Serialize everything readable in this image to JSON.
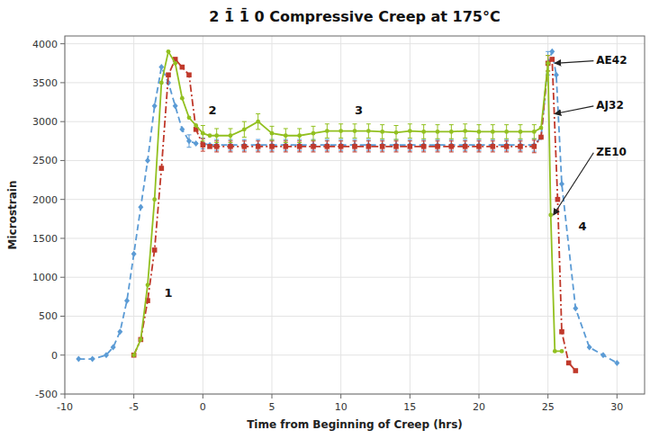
{
  "chart_data": {
    "type": "line",
    "title": "2 1̄ 1̄ 0 Compressive Creep at 175°C",
    "x_label": "Time from Beginning of Creep (hrs)",
    "y_label": "Microstrain",
    "xlim": [
      -10,
      32
    ],
    "ylim": [
      -500,
      4100
    ],
    "xticks": [
      -10,
      -5,
      0,
      5,
      10,
      15,
      20,
      25,
      30
    ],
    "yticks": [
      -500,
      0,
      500,
      1000,
      1500,
      2000,
      2500,
      3000,
      3500,
      4000
    ],
    "grid": true,
    "series": [
      {
        "name": "AE42",
        "color": "#5b9bd5",
        "line_style": "dashed",
        "marker": "diamond",
        "x": [
          -9,
          -8,
          -7,
          -6.5,
          -6,
          -5.5,
          -5,
          -4.5,
          -4,
          -3.5,
          -3,
          -2.5,
          -2,
          -1.5,
          -1,
          -0.5,
          0,
          0.5,
          1,
          2,
          3,
          4,
          5,
          6,
          7,
          8,
          9,
          10,
          11,
          12,
          13,
          14,
          15,
          16,
          17,
          18,
          19,
          20,
          21,
          22,
          23,
          24,
          24.5,
          25,
          25.3,
          25.6,
          26,
          27,
          28,
          29,
          30
        ],
        "values": [
          -50,
          -50,
          0,
          100,
          300,
          700,
          1300,
          1900,
          2500,
          3200,
          3700,
          3500,
          3200,
          2900,
          2750,
          2720,
          2720,
          2700,
          2700,
          2700,
          2700,
          2700,
          2700,
          2700,
          2700,
          2700,
          2700,
          2700,
          2700,
          2700,
          2700,
          2700,
          2700,
          2700,
          2700,
          2700,
          2700,
          2700,
          2700,
          2700,
          2700,
          2700,
          2800,
          3750,
          3900,
          3600,
          2200,
          600,
          100,
          0,
          -100
        ],
        "error_x": [
          -1,
          0,
          1,
          2,
          3,
          4,
          5,
          6,
          7,
          8,
          9,
          10,
          11,
          12,
          13,
          14,
          15,
          16,
          17,
          18,
          19,
          20,
          21,
          22,
          23,
          24,
          25
        ],
        "error_y": [
          2750,
          2720,
          2700,
          2700,
          2700,
          2700,
          2700,
          2700,
          2700,
          2700,
          2700,
          2700,
          2700,
          2700,
          2700,
          2700,
          2700,
          2700,
          2700,
          2700,
          2700,
          2700,
          2700,
          2700,
          2700,
          2700,
          3750
        ],
        "error": [
          80,
          70,
          70,
          70,
          70,
          70,
          70,
          70,
          70,
          70,
          70,
          70,
          70,
          70,
          70,
          70,
          70,
          70,
          70,
          70,
          70,
          70,
          70,
          70,
          70,
          80,
          150
        ]
      },
      {
        "name": "AJ32",
        "color": "#c0392b",
        "line_style": "dashdot",
        "marker": "square",
        "x": [
          -5,
          -4.5,
          -4,
          -3.5,
          -3,
          -2.5,
          -2,
          -1.5,
          -1,
          -0.5,
          0,
          0.5,
          1,
          2,
          3,
          4,
          5,
          6,
          7,
          8,
          9,
          10,
          11,
          12,
          13,
          14,
          15,
          16,
          17,
          18,
          19,
          20,
          21,
          22,
          23,
          24,
          24.5,
          25,
          25.3,
          25.7,
          26,
          26.5,
          27
        ],
        "values": [
          0,
          200,
          700,
          1350,
          2400,
          3600,
          3800,
          3700,
          3600,
          2900,
          2700,
          2680,
          2680,
          2680,
          2680,
          2680,
          2680,
          2680,
          2680,
          2680,
          2680,
          2680,
          2680,
          2680,
          2680,
          2680,
          2680,
          2680,
          2680,
          2680,
          2680,
          2680,
          2680,
          2680,
          2680,
          2680,
          2800,
          3750,
          3800,
          2000,
          300,
          -100,
          -200
        ],
        "error_x": [
          0,
          1,
          2,
          3,
          4,
          5,
          6,
          7,
          8,
          9,
          10,
          11,
          12,
          13,
          14,
          15,
          16,
          17,
          18,
          19,
          20,
          21,
          22,
          23,
          24,
          25
        ],
        "error_y": [
          2700,
          2680,
          2680,
          2680,
          2680,
          2680,
          2680,
          2680,
          2680,
          2680,
          2680,
          2680,
          2680,
          2680,
          2680,
          2680,
          2680,
          2680,
          2680,
          2680,
          2680,
          2680,
          2680,
          2680,
          2680,
          3750
        ],
        "error": [
          80,
          70,
          70,
          70,
          70,
          70,
          70,
          70,
          70,
          70,
          70,
          70,
          70,
          70,
          70,
          70,
          70,
          70,
          70,
          70,
          70,
          70,
          70,
          70,
          80,
          100
        ]
      },
      {
        "name": "ZE10",
        "color": "#92c020",
        "line_style": "solid",
        "marker": "circle",
        "x": [
          -5,
          -4.5,
          -4,
          -3.5,
          -3,
          -2.5,
          -2,
          -1.5,
          -1,
          -0.5,
          0,
          0.5,
          1,
          2,
          3,
          4,
          5,
          6,
          7,
          8,
          9,
          10,
          11,
          12,
          13,
          14,
          15,
          16,
          17,
          18,
          19,
          20,
          21,
          22,
          23,
          24,
          24.5,
          25,
          25.2,
          25.5,
          26
        ],
        "values": [
          0,
          200,
          900,
          2000,
          3500,
          3900,
          3750,
          3300,
          3050,
          2950,
          2850,
          2820,
          2820,
          2820,
          2900,
          3000,
          2850,
          2820,
          2820,
          2850,
          2880,
          2880,
          2880,
          2880,
          2870,
          2860,
          2880,
          2870,
          2870,
          2870,
          2880,
          2870,
          2870,
          2870,
          2870,
          2870,
          2920,
          3750,
          1800,
          50,
          50
        ],
        "error_x": [
          0,
          1,
          2,
          3,
          4,
          5,
          6,
          7,
          8,
          9,
          10,
          11,
          12,
          13,
          14,
          15,
          16,
          17,
          18,
          19,
          20,
          21,
          22,
          23,
          24,
          25
        ],
        "error_y": [
          2850,
          2820,
          2820,
          2900,
          3000,
          2850,
          2820,
          2820,
          2850,
          2880,
          2880,
          2880,
          2880,
          2870,
          2860,
          2880,
          2870,
          2870,
          2870,
          2880,
          2870,
          2870,
          2870,
          2870,
          2870,
          3750
        ],
        "error": [
          100,
          90,
          90,
          100,
          100,
          90,
          90,
          90,
          90,
          90,
          90,
          90,
          90,
          90,
          90,
          90,
          90,
          90,
          90,
          90,
          90,
          90,
          90,
          90,
          90,
          100
        ]
      }
    ],
    "annotations": [
      {
        "text": "1",
        "x": -2.8,
        "y": 750
      },
      {
        "text": "2",
        "x": 0.4,
        "y": 3100
      },
      {
        "text": "3",
        "x": 11.0,
        "y": 3100
      },
      {
        "text": "4",
        "x": 27.2,
        "y": 1600
      },
      {
        "text": "AE42",
        "x": 28.5,
        "y": 3780,
        "arrow_to": [
          25.5,
          3750
        ]
      },
      {
        "text": "AJ32",
        "x": 28.5,
        "y": 3200,
        "arrow_to": [
          25.5,
          3100
        ]
      },
      {
        "text": "ZE10",
        "x": 28.5,
        "y": 2600,
        "arrow_to": [
          25.4,
          1800
        ]
      }
    ]
  }
}
